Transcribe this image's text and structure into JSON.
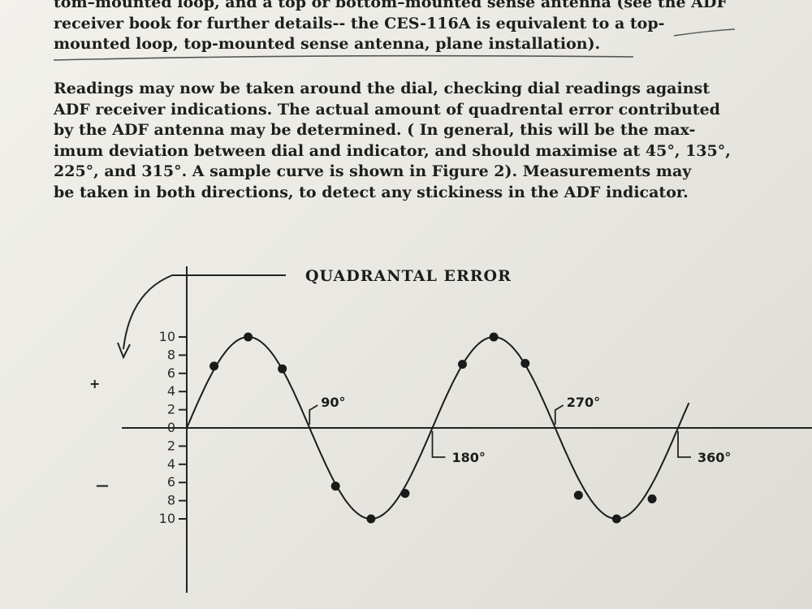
{
  "text_top": {
    "lines": [
      "tom–mounted loop, and a top or bottom–mounted sense antenna (see the ADF",
      "receiver book for further details-- the CES-116A is equivalent to a top-",
      "mounted loop, top-mounted sense antenna, plane installation)."
    ]
  },
  "text_main": {
    "lines": [
      "Readings may now be taken around the dial, checking dial readings against",
      "ADF receiver indications.  The actual amount of quadrental error contributed",
      "by the ADF antenna may be determined.  ( In general, this will be the max-",
      "imum deviation between dial and indicator, and should maximise at 45°, 135°,",
      "225°, and 315°.  A sample curve is shown in Figure 2).  Measurements may",
      "be taken in both directions, to detect any stickiness in the ADF indicator."
    ]
  },
  "chart_data": {
    "type": "line",
    "title": "QUADRANTAL ERROR",
    "xlabel": "",
    "ylabel": "",
    "xlim": [
      0,
      372
    ],
    "ylim": [
      -10.5,
      10.5
    ],
    "y_ticks_positive": [
      {
        "value": 10,
        "label": "10"
      },
      {
        "value": 8,
        "label": "8"
      },
      {
        "value": 6,
        "label": "6"
      },
      {
        "value": 4,
        "label": "4"
      },
      {
        "value": 2,
        "label": "2"
      },
      {
        "value": 0,
        "label": "0"
      }
    ],
    "y_ticks_negative": [
      {
        "value": -2,
        "label": "2"
      },
      {
        "value": -4,
        "label": "4"
      },
      {
        "value": -6,
        "label": "6"
      },
      {
        "value": -8,
        "label": "8"
      },
      {
        "value": -10,
        "label": "10"
      }
    ],
    "sign_labels": {
      "plus": "+",
      "minus": "—"
    },
    "x_markers": [
      {
        "value": 90,
        "label": "90°",
        "side": "above"
      },
      {
        "value": 180,
        "label": "180°",
        "side": "below"
      },
      {
        "value": 270,
        "label": "270°",
        "side": "above"
      },
      {
        "value": 360,
        "label": "360°",
        "side": "below"
      }
    ],
    "series": [
      {
        "curve_max": 10,
        "points": [
          {
            "x": 20,
            "y": 6.8
          },
          {
            "x": 45,
            "y": 10
          },
          {
            "x": 70,
            "y": 6.5
          },
          {
            "x": 109,
            "y": -6.4
          },
          {
            "x": 135,
            "y": -10
          },
          {
            "x": 160,
            "y": -7.2
          },
          {
            "x": 202,
            "y": 7.0
          },
          {
            "x": 225,
            "y": 10
          },
          {
            "x": 248,
            "y": 7.1
          },
          {
            "x": 287,
            "y": -7.4
          },
          {
            "x": 315,
            "y": -10
          },
          {
            "x": 341,
            "y": -7.8
          }
        ]
      }
    ],
    "grid": false
  }
}
